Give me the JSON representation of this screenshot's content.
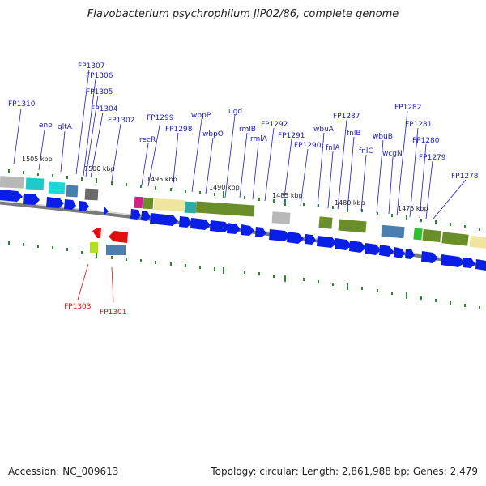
{
  "title": "Flavobacterium psychrophilum JIP02/86, complete genome",
  "footer": {
    "accession": "Accession: NC_009613",
    "summary": "Topology: circular; Length: 2,861,988 bp; Genes: 2,479"
  },
  "colors": {
    "forward_label": "#1a1acc",
    "reverse_label": "#cc1111",
    "tick": "#2a8a2a",
    "backbone": "#7a7a7a",
    "gene_arrow": "#0a1fe6",
    "reverse_arrow": "#e01010"
  },
  "scale_labels": [
    "1505 kbp",
    "1500 kbp",
    "1495 kbp",
    "1490 kbp",
    "1485 kbp",
    "1480 kbp",
    "1475 kbp"
  ],
  "forward_labels": [
    "FP1310",
    "eno",
    "gltA",
    "FP1307",
    "FP1306",
    "FP1305",
    "FP1304",
    "FP1302",
    "FP1299",
    "recR",
    "FP1298",
    "wbpP",
    "wbpO",
    "ugd",
    "rmlB",
    "rmlA",
    "FP1292",
    "FP1291",
    "FP1290",
    "wbuA",
    "FP1287",
    "fnlA",
    "fnlB",
    "fnlC",
    "wbuB",
    "wcgN",
    "FP1282",
    "FP1281",
    "FP1280",
    "FP1279",
    "FP1278"
  ],
  "reverse_labels": [
    "FP1303",
    "FP1301"
  ]
}
